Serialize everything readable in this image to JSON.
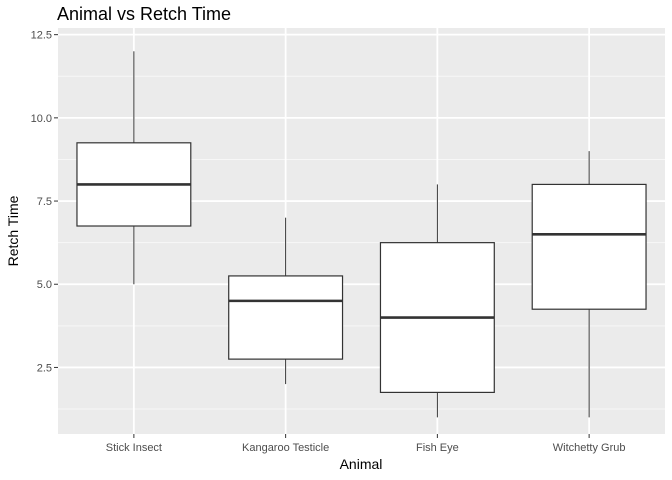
{
  "chart_data": {
    "type": "boxplot",
    "title": "Animal vs Retch Time",
    "xlabel": "Animal",
    "ylabel": "Retch Time",
    "ylim": [
      0.5,
      12.7
    ],
    "yticks": [
      2.5,
      5.0,
      7.5,
      10.0,
      12.5
    ],
    "ytick_labels": [
      "2.5",
      "5.0",
      "7.5",
      "10.0",
      "12.5"
    ],
    "grid": true,
    "categories": [
      "Stick Insect",
      "Kangaroo Testicle",
      "Fish Eye",
      "Witchetty Grub"
    ],
    "boxes": [
      {
        "min": 5,
        "q1": 6.75,
        "median": 8,
        "q3": 9.25,
        "max": 12
      },
      {
        "min": 2,
        "q1": 2.75,
        "median": 4.5,
        "q3": 5.25,
        "max": 7
      },
      {
        "min": 1,
        "q1": 1.75,
        "median": 4,
        "q3": 6.25,
        "max": 8
      },
      {
        "min": 1,
        "q1": 4.25,
        "median": 6.5,
        "q3": 8,
        "max": 9
      }
    ],
    "colors": {
      "panel": "#ebebeb",
      "grid_major": "#ffffff",
      "grid_minor": "#f7f7f7",
      "box_fill": "#ffffff",
      "box_stroke": "#333333"
    }
  }
}
